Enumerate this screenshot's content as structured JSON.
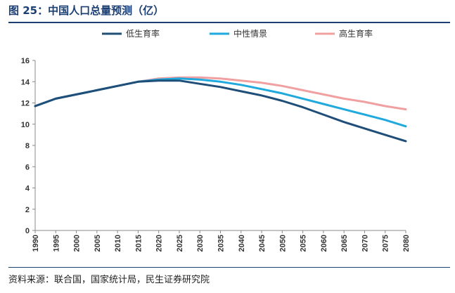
{
  "figure": {
    "title": "图 25：中国人口总量预测（亿）",
    "source": "资料来源：联合国，国家统计局，民生证券研究院",
    "title_color": "#1c3f73"
  },
  "chart_data": {
    "type": "line",
    "title": "图 25：中国人口总量预测（亿）",
    "xlabel": "",
    "ylabel": "",
    "ylim": [
      0,
      16
    ],
    "yticks": [
      0,
      2,
      4,
      6,
      8,
      10,
      12,
      14,
      16
    ],
    "grid": false,
    "legend_position": "top",
    "categories": [
      "1990",
      "1995",
      "2000",
      "2005",
      "2010",
      "2015",
      "2020",
      "2025",
      "2030",
      "2035",
      "2040",
      "2045",
      "2050",
      "2055",
      "2060",
      "2065",
      "2070",
      "2075",
      "2080"
    ],
    "series": [
      {
        "name": "低生育率",
        "color": "#1f4e79",
        "values": [
          11.7,
          12.4,
          12.8,
          13.2,
          13.6,
          14.0,
          14.1,
          14.1,
          13.8,
          13.5,
          13.1,
          12.7,
          12.2,
          11.6,
          10.9,
          10.2,
          9.6,
          9.0,
          8.4
        ]
      },
      {
        "name": "中性情景",
        "color": "#1fa9dd",
        "values": [
          11.7,
          12.4,
          12.8,
          13.2,
          13.6,
          14.0,
          14.2,
          14.3,
          14.2,
          14.0,
          13.7,
          13.3,
          12.9,
          12.4,
          11.9,
          11.4,
          10.9,
          10.4,
          9.8
        ]
      },
      {
        "name": "高生育率",
        "color": "#f0a0a0",
        "values": [
          11.7,
          12.4,
          12.8,
          13.2,
          13.6,
          14.0,
          14.3,
          14.4,
          14.4,
          14.3,
          14.1,
          13.9,
          13.6,
          13.2,
          12.8,
          12.4,
          12.1,
          11.7,
          11.4
        ]
      }
    ]
  }
}
